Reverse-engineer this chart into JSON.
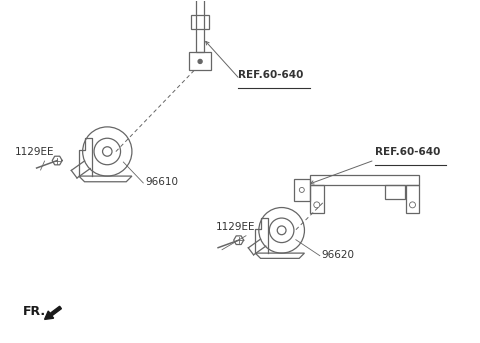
{
  "bg_color": "#ffffff",
  "line_color": "#666666",
  "text_color": "#333333",
  "fig_width": 4.8,
  "fig_height": 3.43,
  "dpi": 100,
  "labels": {
    "ref1": "REF.60-640",
    "ref2": "REF.60-640",
    "part1": "96610",
    "part2": "96620",
    "bolt1": "1129EE",
    "bolt2": "1129EE",
    "fr": "FR."
  }
}
